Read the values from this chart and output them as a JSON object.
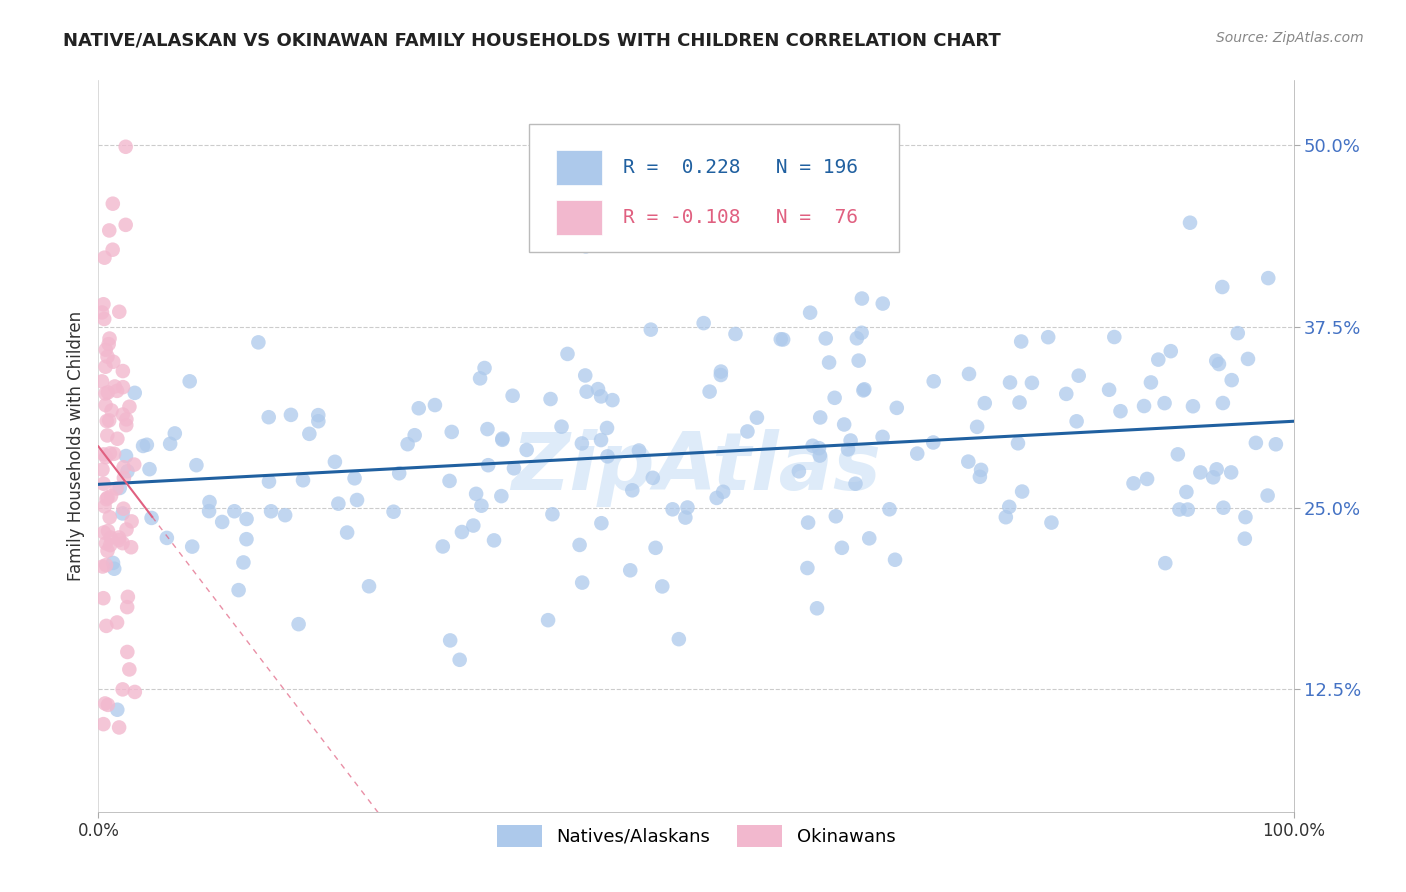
{
  "title": "NATIVE/ALASKAN VS OKINAWAN FAMILY HOUSEHOLDS WITH CHILDREN CORRELATION CHART",
  "source": "Source: ZipAtlas.com",
  "ylabel_label": "Family Households with Children",
  "xlim": [
    0,
    1
  ],
  "ylim": [
    0.04,
    0.545
  ],
  "yticks": [
    0.125,
    0.25,
    0.375,
    0.5
  ],
  "ytick_labels": [
    "12.5%",
    "25.0%",
    "37.5%",
    "50.0%"
  ],
  "xticks": [
    0.0,
    1.0
  ],
  "xtick_labels": [
    "0.0%",
    "100.0%"
  ],
  "blue_color": "#adc9eb",
  "pink_color": "#f2b8ce",
  "line_blue": "#2060a0",
  "line_pink": "#e06080",
  "grid_color": "#cccccc",
  "natives_label": "Natives/Alaskans",
  "okinawans_label": "Okinawans",
  "blue_r": 0.228,
  "blue_n": 196,
  "pink_r": -0.108,
  "pink_n": 76,
  "blue_seed": 12,
  "pink_seed": 7,
  "watermark_color": "#c8dff5",
  "tick_color": "#4472c4",
  "title_color": "#222222",
  "source_color": "#888888"
}
